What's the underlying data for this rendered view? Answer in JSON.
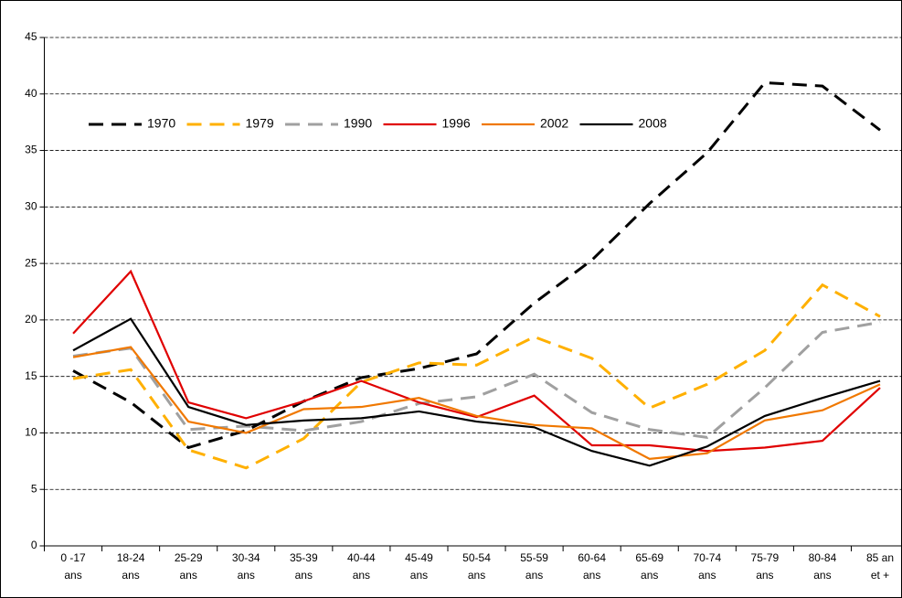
{
  "chart_data": {
    "type": "line",
    "categories": [
      "0 -17\nans",
      "18-24\nans",
      "25-29\nans",
      "30-34\nans",
      "35-39\nans",
      "40-44\nans",
      "45-49\nans",
      "50-54\nans",
      "55-59\nans",
      "60-64\nans",
      "65-69\nans",
      "70-74\nans",
      "75-79\nans",
      "80-84\nans",
      "85 an\net +"
    ],
    "series": [
      {
        "name": "1970",
        "color": "#000000",
        "dashed": true,
        "values": [
          15.5,
          12.7,
          8.7,
          10.2,
          12.8,
          14.9,
          15.7,
          17,
          21.5,
          25.3,
          30.3,
          34.8,
          41,
          40.7,
          36.8
        ]
      },
      {
        "name": "1979",
        "color": "#ffb000",
        "dashed": true,
        "values": [
          14.8,
          15.6,
          8.5,
          6.9,
          9.5,
          14.5,
          16.2,
          16,
          18.5,
          16.6,
          12.2,
          14.3,
          17.3,
          23.1,
          20.3
        ]
      },
      {
        "name": "1990",
        "color": "#a0a0a0",
        "dashed": true,
        "values": [
          16.8,
          17.5,
          10.3,
          10.6,
          10.2,
          11,
          12.6,
          13.2,
          15.2,
          11.8,
          10.3,
          9.6,
          14,
          18.9,
          19.8
        ]
      },
      {
        "name": "1996",
        "color": "#e00000",
        "dashed": false,
        "values": [
          18.8,
          24.3,
          12.7,
          11.3,
          12.8,
          14.6,
          12.7,
          11.4,
          13.3,
          8.9,
          8.9,
          8.4,
          8.7,
          9.3,
          14
        ]
      },
      {
        "name": "2002",
        "color": "#f07800",
        "dashed": false,
        "values": [
          16.7,
          17.6,
          11,
          10,
          12.1,
          12.3,
          13.1,
          11.5,
          10.7,
          10.4,
          7.7,
          8.2,
          11.1,
          12,
          14.3
        ]
      },
      {
        "name": "2008",
        "color": "#000000",
        "dashed": false,
        "values": [
          17.3,
          20.1,
          12.3,
          10.7,
          11.1,
          11.3,
          11.9,
          11,
          10.5,
          8.4,
          7.1,
          8.8,
          11.5,
          13.1,
          14.6
        ]
      }
    ],
    "ylim": [
      0,
      45
    ],
    "yticks": [
      0,
      5,
      10,
      15,
      20,
      25,
      30,
      35,
      40,
      45
    ],
    "grid": true
  }
}
